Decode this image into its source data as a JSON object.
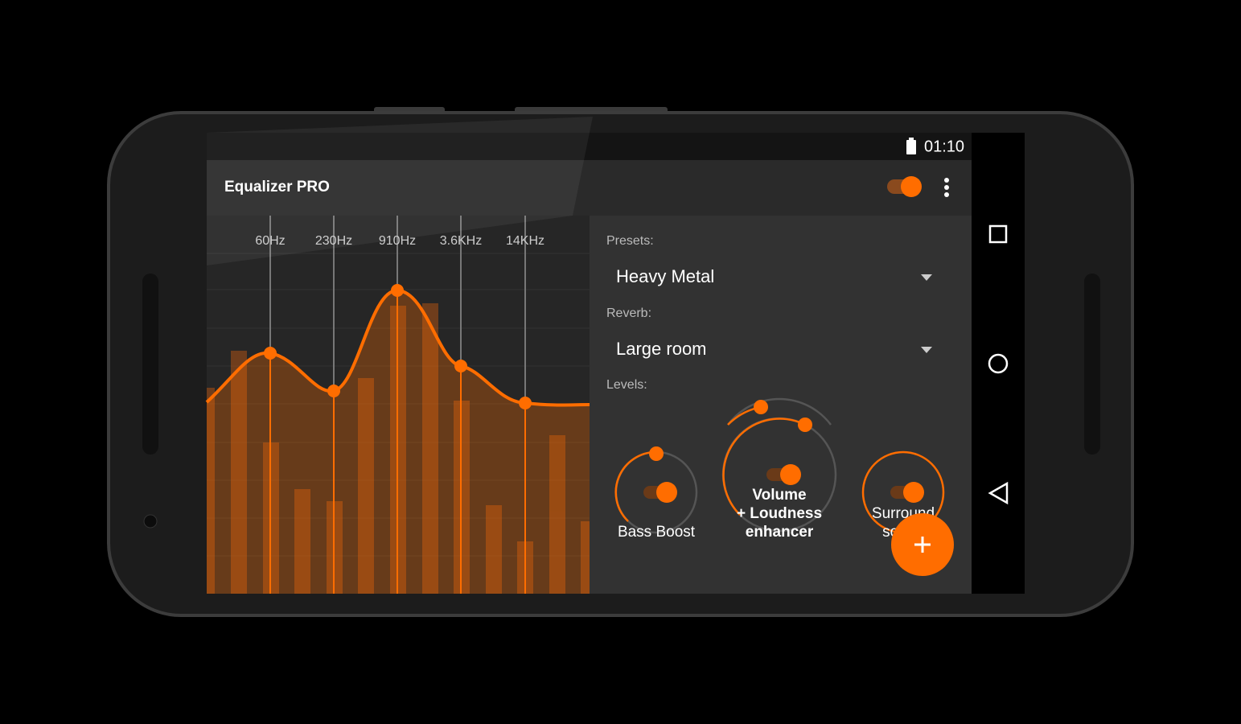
{
  "status_bar": {
    "time": "01:10"
  },
  "app_bar": {
    "title": "Equalizer PRO"
  },
  "equalizer": {
    "bands": [
      "60Hz",
      "230Hz",
      "910Hz",
      "3.6KHz",
      "14KHz"
    ]
  },
  "settings": {
    "presets_label": "Presets:",
    "preset": "Heavy Metal",
    "reverb_label": "Reverb:",
    "reverb": "Large room",
    "levels_label": "Levels:"
  },
  "knobs": [
    {
      "label_lines": [
        "Bass Boost"
      ]
    },
    {
      "label_lines": [
        "Volume",
        "+ Loudness",
        "enhancer"
      ]
    },
    {
      "label_lines": [
        "Surround",
        "sound"
      ]
    }
  ]
}
